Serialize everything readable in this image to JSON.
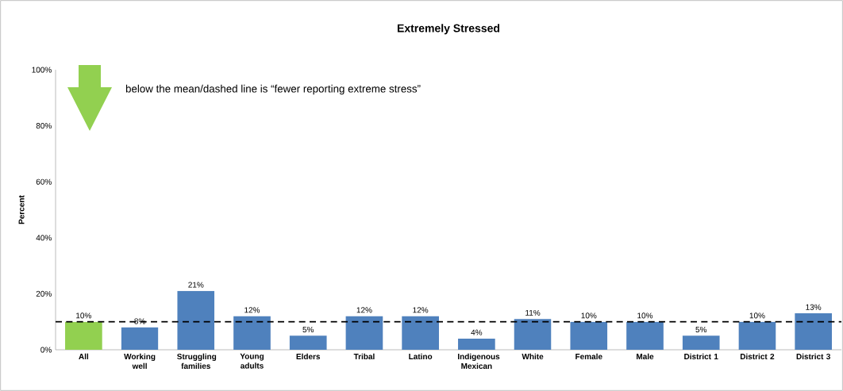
{
  "chart_data": {
    "type": "bar",
    "title": "Extremely Stressed",
    "ylabel": "Percent",
    "categories": [
      "All",
      "Working well",
      "Struggling families",
      "Young adults",
      "Elders",
      "Tribal",
      "Latino",
      "Indigenous Mexican",
      "White",
      "Female",
      "Male",
      "District 1",
      "District 2",
      "District 3"
    ],
    "values": [
      10,
      8,
      21,
      12,
      5,
      12,
      12,
      4,
      11,
      10,
      10,
      5,
      10,
      13
    ],
    "value_labels": [
      "10%",
      "8%",
      "21%",
      "12%",
      "5%",
      "12%",
      "12%",
      "4%",
      "11%",
      "10%",
      "10%",
      "5%",
      "10%",
      "13%"
    ],
    "colors": [
      "#92d050",
      "#4f81bd",
      "#4f81bd",
      "#4f81bd",
      "#4f81bd",
      "#4f81bd",
      "#4f81bd",
      "#4f81bd",
      "#4f81bd",
      "#4f81bd",
      "#4f81bd",
      "#4f81bd",
      "#4f81bd",
      "#4f81bd"
    ],
    "ylim": [
      0,
      100
    ],
    "yticks": [
      {
        "value": 0,
        "label": "0%"
      },
      {
        "value": 20,
        "label": "20%"
      },
      {
        "value": 40,
        "label": "40%"
      },
      {
        "value": 60,
        "label": "60%"
      },
      {
        "value": 80,
        "label": "80%"
      },
      {
        "value": 100,
        "label": "100%"
      }
    ],
    "ref_lines": [
      {
        "axis": "y",
        "value": 10,
        "color": "#000000",
        "line_style": "dashed"
      }
    ],
    "annotations": [
      "below the mean/dashed line is “fewer reporting extreme stress”"
    ],
    "grid": false
  }
}
